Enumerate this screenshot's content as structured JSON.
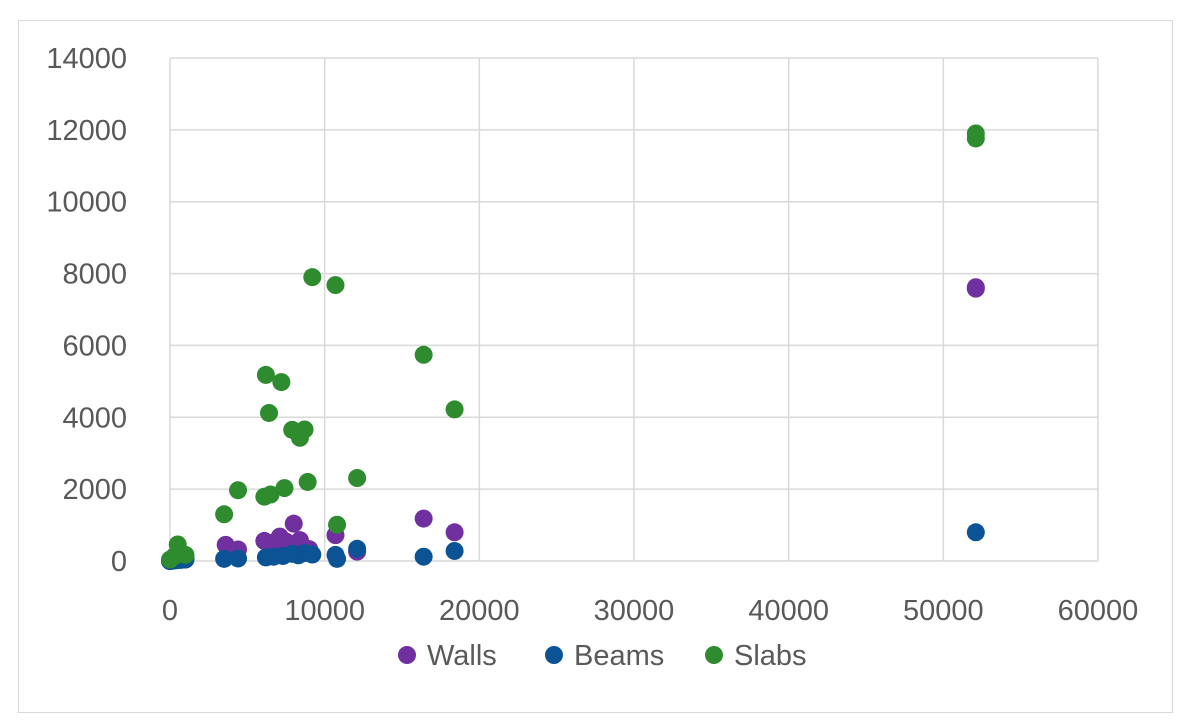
{
  "chart_data": {
    "type": "scatter",
    "title": "",
    "xlabel": "",
    "ylabel": "",
    "xlim": [
      0,
      60000
    ],
    "ylim": [
      0,
      14000
    ],
    "x_ticks": [
      0,
      10000,
      20000,
      30000,
      40000,
      50000,
      60000
    ],
    "y_ticks": [
      0,
      2000,
      4000,
      6000,
      8000,
      10000,
      12000,
      14000
    ],
    "x_tick_labels": [
      "0",
      "10000",
      "20000",
      "30000",
      "40000",
      "50000",
      "60000"
    ],
    "y_tick_labels": [
      "0",
      "2000",
      "4000",
      "6000",
      "8000",
      "10000",
      "12000",
      "14000"
    ],
    "grid": true,
    "legend_position": "bottom",
    "series": [
      {
        "name": "Walls",
        "color": "#7030a0",
        "points": [
          [
            0,
            0
          ],
          [
            150,
            20
          ],
          [
            300,
            30
          ],
          [
            500,
            60
          ],
          [
            700,
            80
          ],
          [
            1000,
            100
          ],
          [
            3600,
            450
          ],
          [
            4400,
            320
          ],
          [
            6100,
            560
          ],
          [
            6600,
            500
          ],
          [
            7100,
            680
          ],
          [
            7500,
            540
          ],
          [
            8000,
            1040
          ],
          [
            8400,
            580
          ],
          [
            9000,
            330
          ],
          [
            10700,
            720
          ],
          [
            12100,
            260
          ],
          [
            16400,
            1180
          ],
          [
            18400,
            800
          ],
          [
            52100,
            7620
          ],
          [
            52100,
            7580
          ]
        ]
      },
      {
        "name": "Beams",
        "color": "#0b5394",
        "points": [
          [
            0,
            0
          ],
          [
            200,
            10
          ],
          [
            400,
            20
          ],
          [
            700,
            30
          ],
          [
            1000,
            40
          ],
          [
            3500,
            60
          ],
          [
            4400,
            70
          ],
          [
            6200,
            100
          ],
          [
            6700,
            120
          ],
          [
            7300,
            140
          ],
          [
            7900,
            200
          ],
          [
            8300,
            160
          ],
          [
            8700,
            220
          ],
          [
            9200,
            180
          ],
          [
            10700,
            170
          ],
          [
            10800,
            60
          ],
          [
            12100,
            340
          ],
          [
            16400,
            120
          ],
          [
            18400,
            280
          ],
          [
            52100,
            800
          ]
        ]
      },
      {
        "name": "Slabs",
        "color": "#2e8b2e",
        "points": [
          [
            0,
            40
          ],
          [
            300,
            140
          ],
          [
            500,
            460
          ],
          [
            800,
            200
          ],
          [
            1000,
            170
          ],
          [
            3500,
            1300
          ],
          [
            4400,
            1970
          ],
          [
            6100,
            1790
          ],
          [
            6500,
            1850
          ],
          [
            6200,
            5180
          ],
          [
            6400,
            4120
          ],
          [
            7200,
            4980
          ],
          [
            7400,
            2030
          ],
          [
            7900,
            3650
          ],
          [
            8400,
            3430
          ],
          [
            8700,
            3660
          ],
          [
            8900,
            2200
          ],
          [
            9200,
            7900
          ],
          [
            10700,
            7680
          ],
          [
            10800,
            1010
          ],
          [
            12100,
            2310
          ],
          [
            16400,
            5740
          ],
          [
            18400,
            4220
          ],
          [
            52100,
            11900
          ],
          [
            52100,
            11760
          ]
        ]
      }
    ]
  }
}
